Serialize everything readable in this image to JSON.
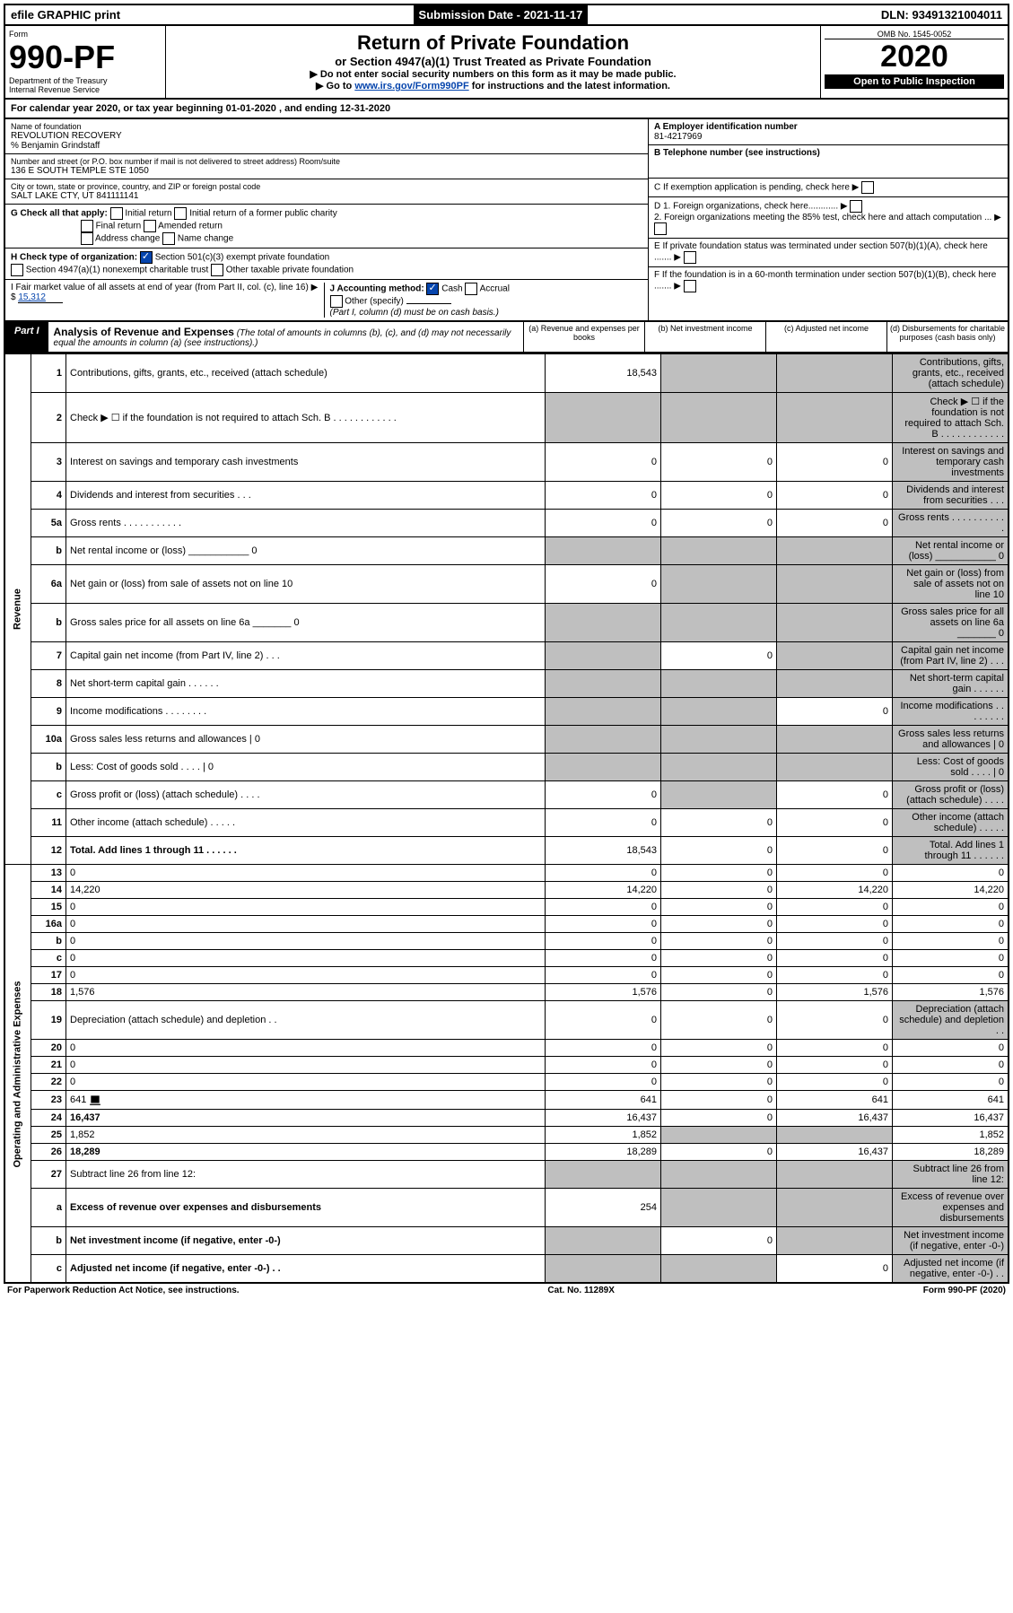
{
  "top": {
    "efile": "efile GRAPHIC print",
    "submission": "Submission Date - 2021-11-17",
    "dln": "DLN: 93491321004011"
  },
  "header": {
    "form_label": "Form",
    "form_no": "990-PF",
    "dept": "Department of the Treasury\nInternal Revenue Service",
    "title": "Return of Private Foundation",
    "subtitle": "or Section 4947(a)(1) Trust Treated as Private Foundation",
    "note1": "▶ Do not enter social security numbers on this form as it may be made public.",
    "note2_pre": "▶ Go to ",
    "note2_link": "www.irs.gov/Form990PF",
    "note2_post": " for instructions and the latest information.",
    "omb": "OMB No. 1545-0052",
    "year": "2020",
    "inspect": "Open to Public Inspection"
  },
  "calyear": "For calendar year 2020, or tax year beginning 01-01-2020          , and ending 12-31-2020",
  "info": {
    "name_label": "Name of foundation",
    "name": "REVOLUTION RECOVERY",
    "care": "% Benjamin Grindstaff",
    "addr_label": "Number and street (or P.O. box number if mail is not delivered to street address)   Room/suite",
    "addr": "136 E SOUTH TEMPLE STE 1050",
    "city_label": "City or town, state or province, country, and ZIP or foreign postal code",
    "city": "SALT LAKE CTY, UT  841111141",
    "a_label": "A Employer identification number",
    "a": "81-4217969",
    "b_label": "B Telephone number (see instructions)",
    "c": "C  If exemption application is pending, check here ▶",
    "d1": "D 1. Foreign organizations, check here............ ▶",
    "d2": "    2. Foreign organizations meeting the 85% test, check here and attach computation ... ▶",
    "e": "E  If private foundation status was terminated under section 507(b)(1)(A), check here ....... ▶",
    "f": "F  If the foundation is in a 60-month termination under section 507(b)(1)(B), check here ....... ▶",
    "g_label": "G Check all that apply:",
    "g_opts": [
      "Initial return",
      "Initial return of a former public charity",
      "Final return",
      "Amended return",
      "Address change",
      "Name change"
    ],
    "h_label": "H Check type of organization:",
    "h1": "Section 501(c)(3) exempt private foundation",
    "h2": "Section 4947(a)(1) nonexempt charitable trust",
    "h3": "Other taxable private foundation",
    "i_label": "I Fair market value of all assets at end of year (from Part II, col. (c), line 16) ▶ $",
    "i_val": "15,312",
    "j_label": "J Accounting method:",
    "j1": "Cash",
    "j2": "Accrual",
    "j3": "Other (specify)",
    "j_note": "(Part I, column (d) must be on cash basis.)"
  },
  "part1": {
    "label": "Part I",
    "title": "Analysis of Revenue and Expenses",
    "sub": "(The total of amounts in columns (b), (c), and (d) may not necessarily equal the amounts in column (a) (see instructions).)",
    "cols": {
      "a": "(a) Revenue and expenses per books",
      "b": "(b) Net investment income",
      "c": "(c) Adjusted net income",
      "d": "(d) Disbursements for charitable purposes (cash basis only)"
    }
  },
  "sections": {
    "revenue": "Revenue",
    "opex": "Operating and Administrative Expenses"
  },
  "rows": [
    {
      "n": "1",
      "d": "Contributions, gifts, grants, etc., received (attach schedule)",
      "a": "18,543",
      "b_g": true,
      "c_g": true,
      "d_g": true
    },
    {
      "n": "2",
      "d": "Check ▶ ☐ if the foundation is not required to attach Sch. B  . . . . . . . . . . . .",
      "a_g": true,
      "b_g": true,
      "c_g": true,
      "d_g": true
    },
    {
      "n": "3",
      "d": "Interest on savings and temporary cash investments",
      "a": "0",
      "b": "0",
      "c": "0",
      "d_g": true
    },
    {
      "n": "4",
      "d": "Dividends and interest from securities   .  .  .",
      "a": "0",
      "b": "0",
      "c": "0",
      "d_g": true
    },
    {
      "n": "5a",
      "d": "Gross rents   .  .  .  .  .  .  .  .  .  .  .",
      "a": "0",
      "b": "0",
      "c": "0",
      "d_g": true
    },
    {
      "n": "b",
      "d": "Net rental income or (loss) ___________ 0",
      "a_g": true,
      "b_g": true,
      "c_g": true,
      "d_g": true
    },
    {
      "n": "6a",
      "d": "Net gain or (loss) from sale of assets not on line 10",
      "a": "0",
      "b_g": true,
      "c_g": true,
      "d_g": true
    },
    {
      "n": "b",
      "d": "Gross sales price for all assets on line 6a _______ 0",
      "a_g": true,
      "b_g": true,
      "c_g": true,
      "d_g": true
    },
    {
      "n": "7",
      "d": "Capital gain net income (from Part IV, line 2)   .  .  .",
      "a_g": true,
      "b": "0",
      "c_g": true,
      "d_g": true
    },
    {
      "n": "8",
      "d": "Net short-term capital gain   .  .  .  .  .  .",
      "a_g": true,
      "b_g": true,
      "c_g": true,
      "d_g": true
    },
    {
      "n": "9",
      "d": "Income modifications   .  .  .  .  .  .  .  .",
      "a_g": true,
      "b_g": true,
      "c": "0",
      "d_g": true
    },
    {
      "n": "10a",
      "d": "Gross sales less returns and allowances  | 0",
      "a_g": true,
      "b_g": true,
      "c_g": true,
      "d_g": true
    },
    {
      "n": "b",
      "d": "Less: Cost of goods sold   .  .  .  .  | 0",
      "a_g": true,
      "b_g": true,
      "c_g": true,
      "d_g": true
    },
    {
      "n": "c",
      "d": "Gross profit or (loss) (attach schedule)   .  .  .  .",
      "a": "0",
      "b_g": true,
      "c": "0",
      "d_g": true
    },
    {
      "n": "11",
      "d": "Other income (attach schedule)   .  .  .  .  .",
      "a": "0",
      "b": "0",
      "c": "0",
      "d_g": true
    },
    {
      "n": "12",
      "d": "Total. Add lines 1 through 11   .  .  .  .  .  .",
      "bold": true,
      "a": "18,543",
      "b": "0",
      "c": "0",
      "d_g": true
    },
    {
      "n": "13",
      "d": "0",
      "a": "0",
      "b": "0",
      "c": "0"
    },
    {
      "n": "14",
      "d": "14,220",
      "a": "14,220",
      "b": "0",
      "c": "14,220"
    },
    {
      "n": "15",
      "d": "0",
      "a": "0",
      "b": "0",
      "c": "0"
    },
    {
      "n": "16a",
      "d": "0",
      "a": "0",
      "b": "0",
      "c": "0"
    },
    {
      "n": "b",
      "d": "0",
      "a": "0",
      "b": "0",
      "c": "0"
    },
    {
      "n": "c",
      "d": "0",
      "a": "0",
      "b": "0",
      "c": "0"
    },
    {
      "n": "17",
      "d": "0",
      "a": "0",
      "b": "0",
      "c": "0"
    },
    {
      "n": "18",
      "d": "1,576",
      "a": "1,576",
      "b": "0",
      "c": "1,576"
    },
    {
      "n": "19",
      "d": "Depreciation (attach schedule) and depletion   .  .",
      "a": "0",
      "b": "0",
      "c": "0",
      "d_g": true
    },
    {
      "n": "20",
      "d": "0",
      "a": "0",
      "b": "0",
      "c": "0"
    },
    {
      "n": "21",
      "d": "0",
      "a": "0",
      "b": "0",
      "c": "0"
    },
    {
      "n": "22",
      "d": "0",
      "a": "0",
      "b": "0",
      "c": "0"
    },
    {
      "n": "23",
      "d": "641",
      "icon": true,
      "a": "641",
      "b": "0",
      "c": "641"
    },
    {
      "n": "24",
      "d": "16,437",
      "bold": true,
      "a": "16,437",
      "b": "0",
      "c": "16,437"
    },
    {
      "n": "25",
      "d": "1,852",
      "a": "1,852",
      "b_g": true,
      "c_g": true
    },
    {
      "n": "26",
      "d": "18,289",
      "bold": true,
      "a": "18,289",
      "b": "0",
      "c": "16,437"
    },
    {
      "n": "27",
      "d": "Subtract line 26 from line 12:",
      "a_g": true,
      "b_g": true,
      "c_g": true,
      "d_g": true
    },
    {
      "n": "a",
      "d": "Excess of revenue over expenses and disbursements",
      "bold": true,
      "a": "254",
      "b_g": true,
      "c_g": true,
      "d_g": true
    },
    {
      "n": "b",
      "d": "Net investment income (if negative, enter -0-)",
      "bold": true,
      "a_g": true,
      "b": "0",
      "c_g": true,
      "d_g": true
    },
    {
      "n": "c",
      "d": "Adjusted net income (if negative, enter -0-)   .  .",
      "bold": true,
      "a_g": true,
      "b_g": true,
      "c": "0",
      "d_g": true
    }
  ],
  "footer": {
    "left": "For Paperwork Reduction Act Notice, see instructions.",
    "mid": "Cat. No. 11289X",
    "right": "Form 990-PF (2020)"
  }
}
